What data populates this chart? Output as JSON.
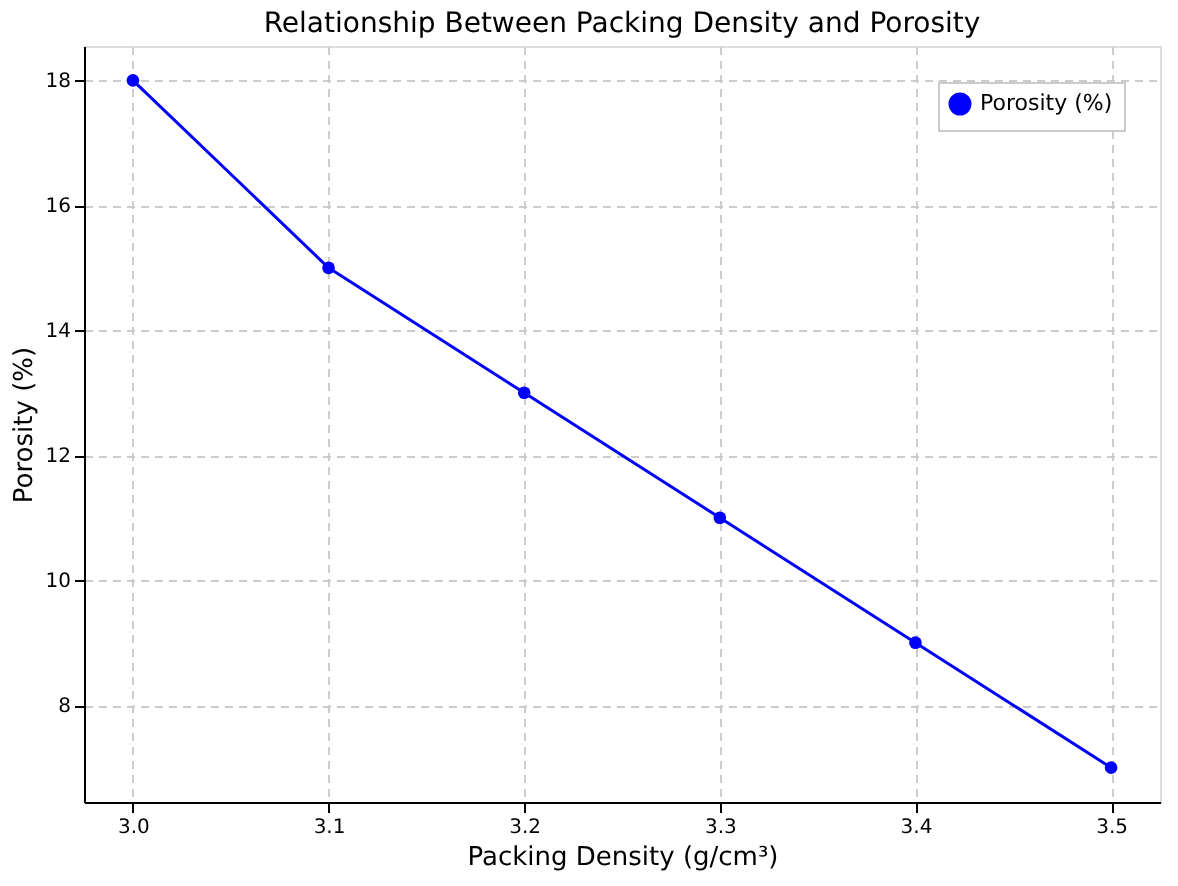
{
  "chart_data": {
    "type": "line",
    "title": "Relationship Between Packing Density and Porosity",
    "xlabel": "Packing Density (g/cm³)",
    "ylabel": "Porosity (%)",
    "x": [
      3.0,
      3.1,
      3.2,
      3.3,
      3.4,
      3.5
    ],
    "series": [
      {
        "name": "Porosity (%)",
        "color": "#0000ff",
        "values": [
          18,
          15,
          13,
          11,
          9,
          7
        ]
      }
    ],
    "xlim": [
      2.975,
      3.525
    ],
    "ylim": [
      6.45,
      18.55
    ],
    "xticks": [
      {
        "value": 3.0,
        "label": "3.0"
      },
      {
        "value": 3.1,
        "label": "3.1"
      },
      {
        "value": 3.2,
        "label": "3.2"
      },
      {
        "value": 3.3,
        "label": "3.3"
      },
      {
        "value": 3.4,
        "label": "3.4"
      },
      {
        "value": 3.5,
        "label": "3.5"
      }
    ],
    "yticks": [
      8,
      10,
      12,
      14,
      16,
      18
    ],
    "grid": true,
    "legend": "top right",
    "marker": "circle",
    "line_style": "solid"
  }
}
